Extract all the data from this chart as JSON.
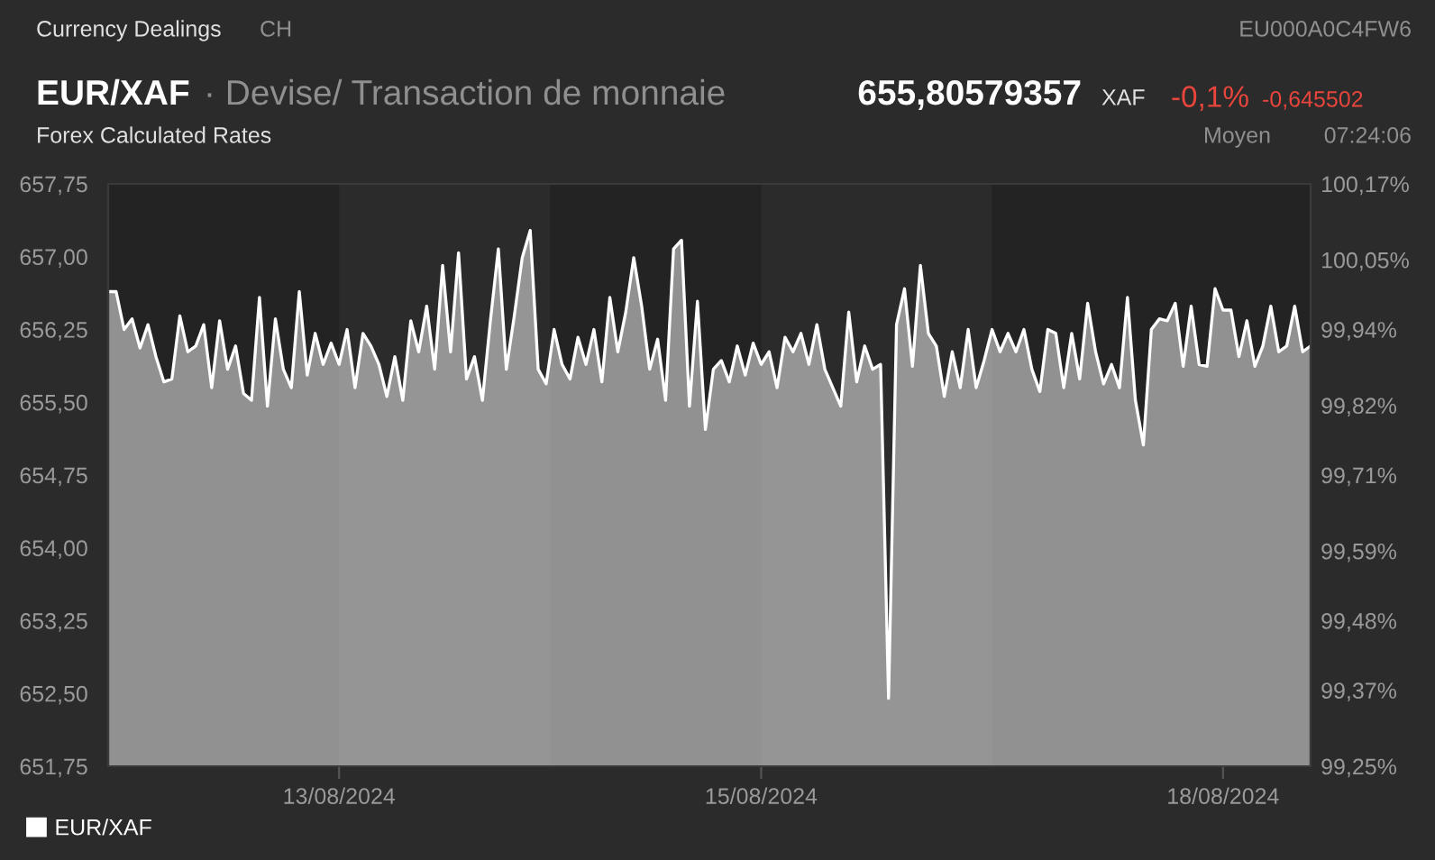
{
  "chart_data": {
    "type": "area",
    "title": "EUR/XAF",
    "subtitle": "· Devise/ Transaction de monnaie",
    "annotations": [
      "Currency Dealings",
      "CH",
      "EU000A0C4FW6",
      "Forex Calculated Rates",
      "655,80579357",
      "XAF",
      "-0,1%",
      "-0,645502",
      "Moyen",
      "07:24:06"
    ],
    "categories": [
      null,
      null,
      null,
      null,
      null,
      null,
      null,
      null,
      null,
      null,
      null,
      null,
      null,
      null,
      null,
      null,
      null,
      null,
      null,
      null,
      null,
      null,
      null,
      null,
      null,
      null,
      null,
      null,
      null,
      "13/08/2024",
      null,
      null,
      null,
      null,
      null,
      null,
      null,
      null,
      null,
      null,
      null,
      null,
      null,
      null,
      null,
      null,
      null,
      null,
      null,
      null,
      null,
      null,
      null,
      null,
      null,
      null,
      null,
      null,
      null,
      null,
      null,
      null,
      null,
      null,
      null,
      null,
      null,
      null,
      null,
      null,
      null,
      null,
      null,
      null,
      null,
      null,
      null,
      null,
      null,
      null,
      null,
      null,
      "15/08/2024",
      null,
      null,
      null,
      null,
      null,
      null,
      null,
      null,
      null,
      null,
      null,
      null,
      null,
      null,
      null,
      null,
      null,
      null,
      null,
      null,
      null,
      null,
      null,
      null,
      null,
      null,
      null,
      null,
      null,
      null,
      null,
      null,
      null,
      null,
      null,
      null,
      null,
      null,
      null,
      null,
      null,
      null,
      null,
      null,
      null,
      null,
      null,
      null,
      null,
      null,
      null,
      null,
      null,
      null,
      null,
      null,
      null,
      "18/08/2024",
      null,
      null,
      null,
      null,
      null,
      null,
      null,
      null,
      null,
      null,
      null
    ],
    "series": [
      {
        "name": "EUR/XAF",
        "color": "#ffffff",
        "values": [
          656.64,
          656.64,
          656.25,
          656.36,
          656.06,
          656.3,
          655.97,
          655.71,
          655.74,
          656.39,
          656.02,
          656.08,
          656.3,
          655.65,
          656.34,
          655.84,
          656.08,
          655.59,
          655.52,
          656.58,
          655.46,
          656.36,
          655.84,
          655.65,
          656.64,
          655.78,
          656.21,
          655.89,
          656.11,
          655.89,
          656.25,
          655.65,
          656.21,
          656.08,
          655.89,
          655.56,
          655.97,
          655.52,
          656.34,
          656.02,
          656.49,
          655.84,
          656.91,
          656.02,
          657.04,
          655.74,
          655.97,
          655.52,
          656.34,
          657.08,
          655.84,
          656.39,
          656.99,
          657.27,
          655.84,
          655.69,
          656.25,
          655.89,
          655.74,
          656.17,
          655.89,
          656.25,
          655.71,
          656.58,
          656.02,
          656.43,
          656.99,
          656.49,
          655.84,
          656.15,
          655.52,
          657.08,
          657.17,
          655.46,
          656.54,
          655.22,
          655.84,
          655.93,
          655.71,
          656.08,
          655.78,
          656.11,
          655.89,
          656.02,
          655.65,
          656.17,
          656.02,
          656.21,
          655.89,
          656.3,
          655.84,
          655.65,
          655.46,
          656.43,
          655.71,
          656.08,
          655.84,
          655.89,
          652.45,
          656.3,
          656.67,
          655.87,
          656.91,
          656.21,
          656.08,
          655.56,
          656.02,
          655.65,
          656.25,
          655.65,
          655.93,
          656.25,
          656.02,
          656.21,
          656.02,
          656.25,
          655.84,
          655.61,
          656.25,
          656.21,
          655.65,
          656.21,
          655.74,
          656.52,
          656.02,
          655.69,
          655.89,
          655.65,
          656.58,
          655.52,
          655.06,
          656.25,
          656.36,
          656.34,
          656.52,
          655.87,
          656.49,
          655.89,
          655.87,
          656.67,
          656.45,
          656.45,
          655.97,
          656.34,
          655.87,
          656.08,
          656.49,
          656.02,
          656.08,
          656.49,
          656.02,
          656.08
        ]
      }
    ],
    "ylim": [
      651.75,
      657.75
    ],
    "yticks": [
      {
        "value": 651.75,
        "label": "651,75"
      },
      {
        "value": 652.5,
        "label": "652,50"
      },
      {
        "value": 653.25,
        "label": "653,25"
      },
      {
        "value": 654,
        "label": "654,00"
      },
      {
        "value": 654.75,
        "label": "654,75"
      },
      {
        "value": 655.5,
        "label": "655,50"
      },
      {
        "value": 656.25,
        "label": "656,25"
      },
      {
        "value": 657,
        "label": "657,00"
      },
      {
        "value": 657.75,
        "label": "657,75"
      }
    ],
    "y2lim": [
      99.25,
      100.17
    ],
    "y2ticks": [
      {
        "value": 99.25,
        "label": "99,25%"
      },
      {
        "value": 99.37,
        "label": "99,37%"
      },
      {
        "value": 99.48,
        "label": "99,48%"
      },
      {
        "value": 99.59,
        "label": "99,59%"
      },
      {
        "value": 99.71,
        "label": "99,71%"
      },
      {
        "value": 99.82,
        "label": "99,82%"
      },
      {
        "value": 99.94,
        "label": "99,94%"
      },
      {
        "value": 100.05,
        "label": "100,05%"
      },
      {
        "value": 100.17,
        "label": "100,17%"
      }
    ],
    "legend": "bottom left"
  }
}
